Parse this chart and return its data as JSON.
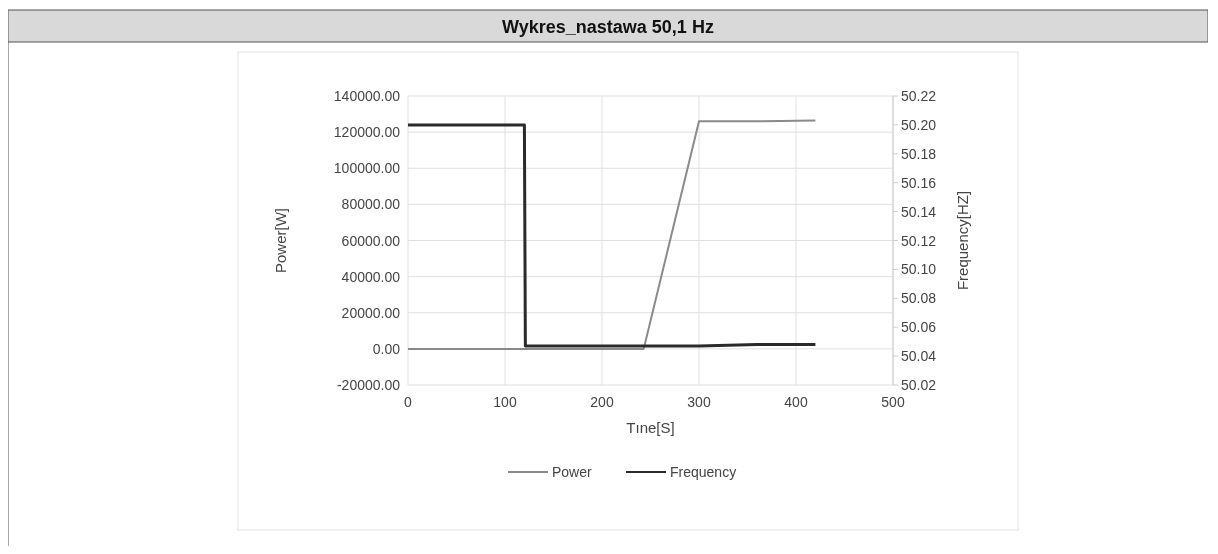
{
  "chart_data": {
    "type": "line",
    "title": "Wykres_nastawa 50,1 Hz",
    "xlabel": "Tıne[S]",
    "ylabel": "Power[W]",
    "y2label": "Frequency[HZ]",
    "series": [
      {
        "name": "Power",
        "color": "#8a8a8a",
        "x": [
          0,
          120,
          243,
          300,
          360,
          420
        ],
        "values": [
          0,
          0,
          0,
          126000,
          126000,
          126500
        ]
      },
      {
        "name": "Frequency",
        "color": "#2a2a2a",
        "axis": "y2",
        "x": [
          0,
          60,
          120,
          121,
          180,
          240,
          300,
          360,
          420
        ],
        "values": [
          50.2,
          50.2,
          50.2,
          50.047,
          50.047,
          50.047,
          50.047,
          50.048,
          50.048
        ]
      }
    ],
    "xlim": [
      0,
      500
    ],
    "xticks": [
      0,
      100,
      200,
      300,
      400,
      500
    ],
    "ylim": [
      -20000,
      140000
    ],
    "yticks": [
      {
        "value": -20000,
        "label": "-20000.00"
      },
      {
        "value": 0,
        "label": "0.00"
      },
      {
        "value": 20000,
        "label": "20000.00"
      },
      {
        "value": 40000,
        "label": "40000.00"
      },
      {
        "value": 60000,
        "label": "60000.00"
      },
      {
        "value": 80000,
        "label": "80000.00"
      },
      {
        "value": 100000,
        "label": "100000.00"
      },
      {
        "value": 120000,
        "label": "120000.00"
      },
      {
        "value": 140000,
        "label": "140000.00"
      }
    ],
    "y2lim": [
      50.02,
      50.22
    ],
    "y2ticks": [
      {
        "value": 50.02,
        "label": "50.02"
      },
      {
        "value": 50.04,
        "label": "50.04"
      },
      {
        "value": 50.06,
        "label": "50.06"
      },
      {
        "value": 50.08,
        "label": "50.08"
      },
      {
        "value": 50.1,
        "label": "50.10"
      },
      {
        "value": 50.12,
        "label": "50.12"
      },
      {
        "value": 50.14,
        "label": "50.14"
      },
      {
        "value": 50.16,
        "label": "50.16"
      },
      {
        "value": 50.18,
        "label": "50.18"
      },
      {
        "value": 50.2,
        "label": "50.20"
      },
      {
        "value": 50.22,
        "label": "50.22"
      }
    ],
    "grid": true,
    "legend": "bottom",
    "line_style": "solid"
  }
}
